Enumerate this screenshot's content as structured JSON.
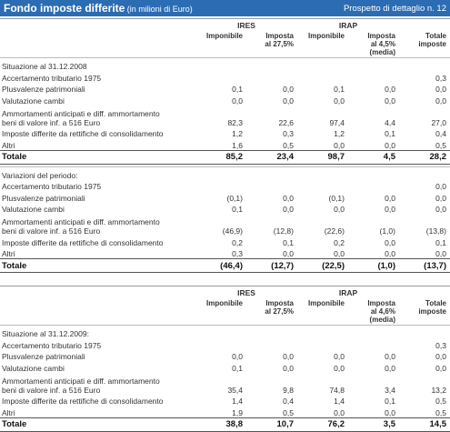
{
  "header": {
    "title": "Fondo imposte differite",
    "unit": "(in milioni di Euro)",
    "ref": "Prospetto di dettaglio n. 12"
  },
  "sections": [
    {
      "column_headers": {
        "groups": [
          "IRES",
          "IRAP"
        ],
        "cols": [
          [
            "Imponibile"
          ],
          [
            "Imposta",
            "al 27,5%"
          ],
          [
            "Imponibile"
          ],
          [
            "Imposta",
            "al 4,5%",
            "(media)"
          ],
          [
            "Totale",
            "imposte"
          ]
        ]
      },
      "title": "Situazione al 31.12.2008",
      "rows": [
        {
          "label": "Accertamento tributario 1975",
          "values": [
            null,
            null,
            null,
            null,
            "0,3"
          ]
        },
        {
          "label": "Plusvalenze patrimoniali",
          "values": [
            "0,1",
            "0,0",
            "0,1",
            "0,0",
            "0,0"
          ]
        },
        {
          "label": "Valutazione cambi",
          "values": [
            "0,0",
            "0,0",
            "0,0",
            "0,0",
            "0,0"
          ]
        },
        {
          "label_lines": [
            "Ammortamenti anticipati e diff. ammortamento",
            "beni di valore inf. a 516 Euro"
          ],
          "values": [
            "82,3",
            "22,6",
            "97,4",
            "4,4",
            "27,0"
          ]
        },
        {
          "label": "Imposte differite da rettifiche di consolidamento",
          "values": [
            "1,2",
            "0,3",
            "1,2",
            "0,1",
            "0,4"
          ]
        },
        {
          "label": "Altri",
          "values": [
            "1,6",
            "0,5",
            "0,0",
            "0,0",
            "0,5"
          ]
        }
      ],
      "total": {
        "label": "Totale",
        "values": [
          "85,2",
          "23,4",
          "98,7",
          "4,5",
          "28,2"
        ]
      }
    },
    {
      "title": "Variazioni del periodo:",
      "rows": [
        {
          "label": "Accertamento tributario 1975",
          "values": [
            null,
            null,
            null,
            null,
            "0,0"
          ]
        },
        {
          "label": "Plusvalenze patrimoniali",
          "values": [
            "(0,1)",
            "0,0",
            "(0,1)",
            "0,0",
            "0,0"
          ]
        },
        {
          "label": "Valutazione cambi",
          "values": [
            "0,1",
            "0,0",
            "0,0",
            "0,0",
            "0,0"
          ]
        },
        {
          "label_lines": [
            "Ammortamenti anticipati e diff. ammortamento",
            "beni di valore inf. a 516 Euro"
          ],
          "values": [
            "(46,9)",
            "(12,8)",
            "(22,6)",
            "(1,0)",
            "(13,8)"
          ]
        },
        {
          "label": "Imposte differite da rettifiche di consolidamento",
          "values": [
            "0,2",
            "0,1",
            "0,2",
            "0,0",
            "0,1"
          ]
        },
        {
          "label": "Altri",
          "values": [
            "0,3",
            "0,0",
            "0,0",
            "0,0",
            "0,0"
          ]
        }
      ],
      "total": {
        "label": "Totale",
        "values": [
          "(46,4)",
          "(12,7)",
          "(22,5)",
          "(1,0)",
          "(13,7)"
        ]
      }
    },
    {
      "column_headers": {
        "groups": [
          "IRES",
          "IRAP"
        ],
        "cols": [
          [
            "Imponibile"
          ],
          [
            "Imposta",
            "al 27,5%"
          ],
          [
            "Imponibile"
          ],
          [
            "Imposta",
            "al 4,6%",
            "(media)"
          ],
          [
            "Totale",
            "imposte"
          ]
        ]
      },
      "title": "Situazione al 31.12.2009:",
      "rows": [
        {
          "label": "Accertamento tributario 1975",
          "values": [
            null,
            null,
            null,
            null,
            "0,3"
          ]
        },
        {
          "label": "Plusvalenze patrimoniali",
          "values": [
            "0,0",
            "0,0",
            "0,0",
            "0,0",
            "0,0"
          ]
        },
        {
          "label": "Valutazione cambi",
          "values": [
            "0,1",
            "0,0",
            "0,0",
            "0,0",
            "0,0"
          ]
        },
        {
          "label_lines": [
            "Ammortamenti anticipati e diff. ammortamento",
            "beni di valore inf. a 516 Euro"
          ],
          "values": [
            "35,4",
            "9,8",
            "74,8",
            "3,4",
            "13,2"
          ]
        },
        {
          "label": "Imposte differite da rettifiche di consolidamento",
          "values": [
            "1,4",
            "0,4",
            "1,4",
            "0,1",
            "0,5"
          ]
        },
        {
          "label": "Altri",
          "values": [
            "1,9",
            "0,5",
            "0,0",
            "0,0",
            "0,5"
          ]
        }
      ],
      "total": {
        "label": "Totale",
        "values": [
          "38,8",
          "10,7",
          "76,2",
          "3,5",
          "14,5"
        ]
      }
    }
  ]
}
